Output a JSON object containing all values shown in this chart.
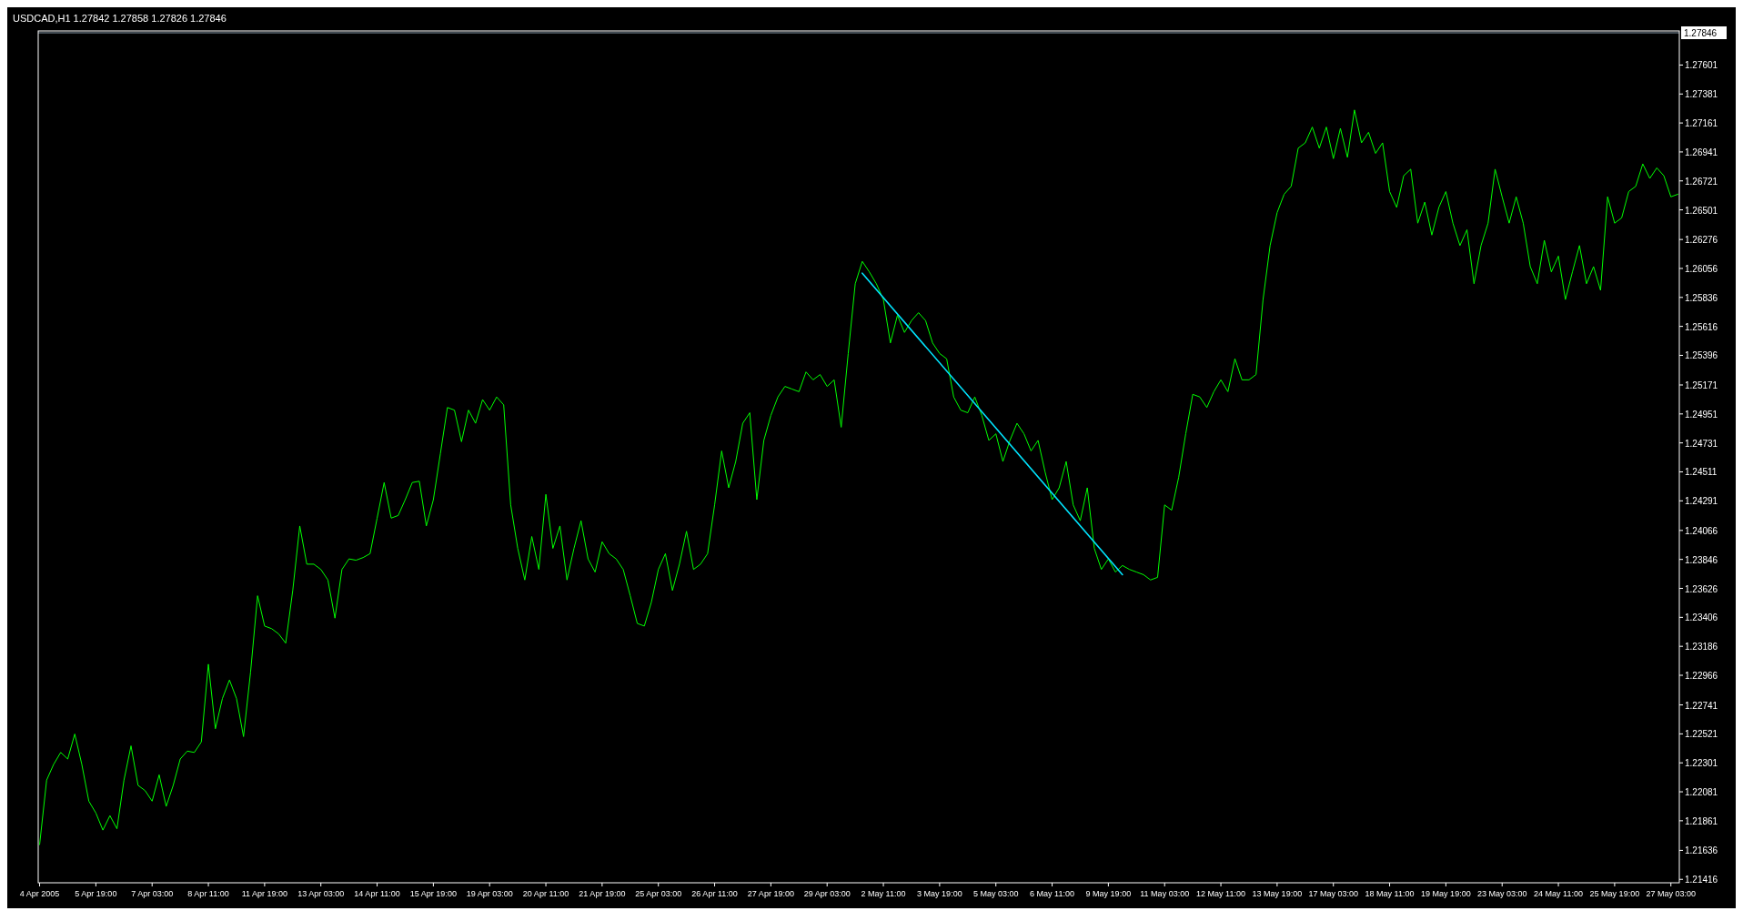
{
  "chart_data": {
    "type": "line",
    "title": "USDCAD,H1  1.27842 1.27858 1.27826 1.27846",
    "categories": [
      "4 Apr 2005",
      null,
      null,
      null,
      null,
      null,
      null,
      null,
      "5 Apr 19:00",
      null,
      null,
      null,
      null,
      null,
      null,
      null,
      "7 Apr 03:00",
      null,
      null,
      null,
      null,
      null,
      null,
      null,
      "8 Apr 11:00",
      null,
      null,
      null,
      null,
      null,
      null,
      null,
      "11 Apr 19:00",
      null,
      null,
      null,
      null,
      null,
      null,
      null,
      "13 Apr 03:00",
      null,
      null,
      null,
      null,
      null,
      null,
      null,
      "14 Apr 11:00",
      null,
      null,
      null,
      null,
      null,
      null,
      null,
      "15 Apr 19:00",
      null,
      null,
      null,
      null,
      null,
      null,
      null,
      "19 Apr 03:00",
      null,
      null,
      null,
      null,
      null,
      null,
      null,
      "20 Apr 11:00",
      null,
      null,
      null,
      null,
      null,
      null,
      null,
      "21 Apr 19:00",
      null,
      null,
      null,
      null,
      null,
      null,
      null,
      "25 Apr 03:00",
      null,
      null,
      null,
      null,
      null,
      null,
      null,
      "26 Apr 11:00",
      null,
      null,
      null,
      null,
      null,
      null,
      null,
      "27 Apr 19:00",
      null,
      null,
      null,
      null,
      null,
      null,
      null,
      "29 Apr 03:00",
      null,
      null,
      null,
      null,
      null,
      null,
      null,
      "2 May 11:00",
      null,
      null,
      null,
      null,
      null,
      null,
      null,
      "3 May 19:00",
      null,
      null,
      null,
      null,
      null,
      null,
      null,
      "5 May 03:00",
      null,
      null,
      null,
      null,
      null,
      null,
      null,
      "6 May 11:00",
      null,
      null,
      null,
      null,
      null,
      null,
      null,
      "9 May 19:00",
      null,
      null,
      null,
      null,
      null,
      null,
      null,
      "11 May 03:00",
      null,
      null,
      null,
      null,
      null,
      null,
      null,
      "12 May 11:00",
      null,
      null,
      null,
      null,
      null,
      null,
      null,
      "13 May 19:00",
      null,
      null,
      null,
      null,
      null,
      null,
      null,
      "17 May 03:00",
      null,
      null,
      null,
      null,
      null,
      null,
      null,
      "18 May 11:00",
      null,
      null,
      null,
      null,
      null,
      null,
      null,
      "19 May 19:00",
      null,
      null,
      null,
      null,
      null,
      null,
      null,
      "23 May 03:00",
      null,
      null,
      null,
      null,
      null,
      null,
      null,
      "24 May 11:00",
      null,
      null,
      null,
      null,
      null,
      null,
      null,
      "25 May 19:00",
      null,
      null,
      null,
      null,
      null,
      null,
      null,
      "27 May 03:00",
      null
    ],
    "ylim": [
      1.2139,
      1.2786
    ],
    "yticks": [
      1.27601,
      1.27381,
      1.27161,
      1.26941,
      1.26721,
      1.26501,
      1.26276,
      1.26056,
      1.25836,
      1.25616,
      1.25396,
      1.25171,
      1.24951,
      1.24731,
      1.24511,
      1.24291,
      1.24066,
      1.23846,
      1.23626,
      1.23406,
      1.23186,
      1.22966,
      1.22741,
      1.22521,
      1.22301,
      1.22081,
      1.21861,
      1.21636,
      1.21416
    ],
    "ref_lines": [
      {
        "axis": "y",
        "value": 1.27846,
        "label": "1.27846",
        "color": "#8899aa"
      }
    ],
    "series": [
      {
        "color": "#00ff00",
        "values": [
          1.2168,
          1.2217,
          1.2229,
          1.2238,
          1.2233,
          1.2252,
          1.2229,
          1.2201,
          1.2192,
          1.2179,
          1.219,
          1.218,
          1.2217,
          1.2243,
          1.2213,
          1.2209,
          1.2201,
          1.2221,
          1.2197,
          1.2213,
          1.2233,
          1.2239,
          1.2238,
          1.2246,
          1.2305,
          1.2256,
          1.2279,
          1.2293,
          1.2279,
          1.225,
          1.2299,
          1.2357,
          1.2334,
          1.2332,
          1.2328,
          1.2321,
          1.2361,
          1.241,
          1.2381,
          1.2381,
          1.2377,
          1.2369,
          1.234,
          1.2377,
          1.2385,
          1.2384,
          1.2386,
          1.2389,
          1.2416,
          1.2443,
          1.2416,
          1.2418,
          1.243,
          1.2443,
          1.2444,
          1.241,
          1.243,
          1.2465,
          1.25,
          1.2498,
          1.2474,
          1.2498,
          1.2488,
          1.2506,
          1.2498,
          1.2508,
          1.2502,
          1.2426,
          1.2393,
          1.2369,
          1.2402,
          1.2377,
          1.2434,
          1.2393,
          1.241,
          1.2369,
          1.2393,
          1.2414,
          1.2385,
          1.2375,
          1.2398,
          1.2389,
          1.2385,
          1.2377,
          1.2357,
          1.2336,
          1.2334,
          1.2352,
          1.2377,
          1.2389,
          1.2361,
          1.2381,
          1.2406,
          1.2377,
          1.2381,
          1.2389,
          1.2426,
          1.2467,
          1.2439,
          1.2459,
          1.2488,
          1.2496,
          1.243,
          1.2475,
          1.2494,
          1.2508,
          1.2516,
          1.2514,
          1.2512,
          1.2527,
          1.2521,
          1.2525,
          1.2516,
          1.2521,
          1.2485,
          1.2541,
          1.2594,
          1.2611,
          1.2603,
          1.2594,
          1.2582,
          1.2549,
          1.257,
          1.2557,
          1.2566,
          1.2572,
          1.2566,
          1.2549,
          1.2541,
          1.2537,
          1.2508,
          1.2498,
          1.2496,
          1.2508,
          1.2494,
          1.2475,
          1.248,
          1.2459,
          1.2475,
          1.2488,
          1.248,
          1.2467,
          1.2475,
          1.2451,
          1.243,
          1.2439,
          1.2459,
          1.2426,
          1.2414,
          1.2439,
          1.2393,
          1.2377,
          1.2385,
          1.2375,
          1.238,
          1.2377,
          1.2375,
          1.2373,
          1.2369,
          1.2371,
          1.2426,
          1.2422,
          1.2447,
          1.248,
          1.251,
          1.2508,
          1.25,
          1.2512,
          1.2521,
          1.2512,
          1.2537,
          1.2521,
          1.2521,
          1.2525,
          1.2582,
          1.2623,
          1.2648,
          1.2662,
          1.2668,
          1.2697,
          1.2701,
          1.2713,
          1.2697,
          1.2713,
          1.2689,
          1.2712,
          1.269,
          1.2726,
          1.2701,
          1.2709,
          1.2693,
          1.2701,
          1.2664,
          1.2652,
          1.2676,
          1.2681,
          1.264,
          1.2656,
          1.2631,
          1.2652,
          1.2664,
          1.264,
          1.2623,
          1.2635,
          1.2594,
          1.2623,
          1.264,
          1.2681,
          1.266,
          1.264,
          1.266,
          1.264,
          1.2607,
          1.2594,
          1.2627,
          1.2603,
          1.2615,
          1.2582,
          1.2603,
          1.2623,
          1.2594,
          1.2607,
          1.2589,
          1.266,
          1.264,
          1.2644,
          1.2664,
          1.2668,
          1.2685,
          1.2674,
          1.2682,
          1.2676,
          1.266,
          1.2662
        ]
      },
      {
        "type": "line",
        "color": "#00e5ff",
        "values": [
          null,
          null,
          null,
          null,
          null,
          null,
          null,
          null,
          null,
          null,
          null,
          null,
          null,
          null,
          null,
          null,
          null,
          null,
          null,
          null,
          null,
          null,
          null,
          null,
          null,
          null,
          null,
          null,
          null,
          null,
          null,
          null,
          null,
          null,
          null,
          null,
          null,
          null,
          null,
          null,
          null,
          null,
          null,
          null,
          null,
          null,
          null,
          null,
          null,
          null,
          null,
          null,
          null,
          null,
          null,
          null,
          null,
          null,
          null,
          null,
          null,
          null,
          null,
          null,
          null,
          null,
          null,
          null,
          null,
          null,
          null,
          null,
          null,
          null,
          null,
          null,
          null,
          null,
          null,
          null,
          null,
          null,
          null,
          null,
          null,
          null,
          null,
          null,
          null,
          null,
          null,
          null,
          null,
          null,
          null,
          null,
          null,
          null,
          null,
          null,
          null,
          null,
          null,
          null,
          null,
          null,
          null,
          null,
          null,
          null,
          null,
          null,
          null,
          null,
          null,
          null,
          null,
          1.2602,
          null,
          null,
          null,
          null,
          null,
          null,
          null,
          null,
          null,
          null,
          null,
          null,
          null,
          null,
          null,
          null,
          null,
          null,
          null,
          null,
          null,
          null,
          null,
          null,
          null,
          null,
          null,
          null,
          null,
          null,
          null,
          null,
          null,
          null,
          null,
          null,
          1.2373,
          null,
          null,
          null,
          null,
          null,
          null,
          null,
          null,
          null,
          null,
          null,
          null,
          null,
          null,
          null,
          null,
          null,
          null,
          null,
          null,
          null,
          null,
          null,
          null,
          null,
          null,
          null,
          null,
          null,
          null,
          null,
          null,
          null,
          null,
          null,
          null,
          null,
          null,
          null,
          null,
          null,
          null,
          null,
          null,
          null,
          null,
          null,
          null,
          null,
          null,
          null,
          null,
          null,
          null,
          null,
          null,
          null,
          null,
          null,
          null,
          null,
          null,
          null,
          null,
          null,
          null,
          null,
          null,
          null,
          null,
          null,
          null,
          null,
          null,
          null,
          null,
          null,
          null,
          null
        ]
      }
    ]
  }
}
